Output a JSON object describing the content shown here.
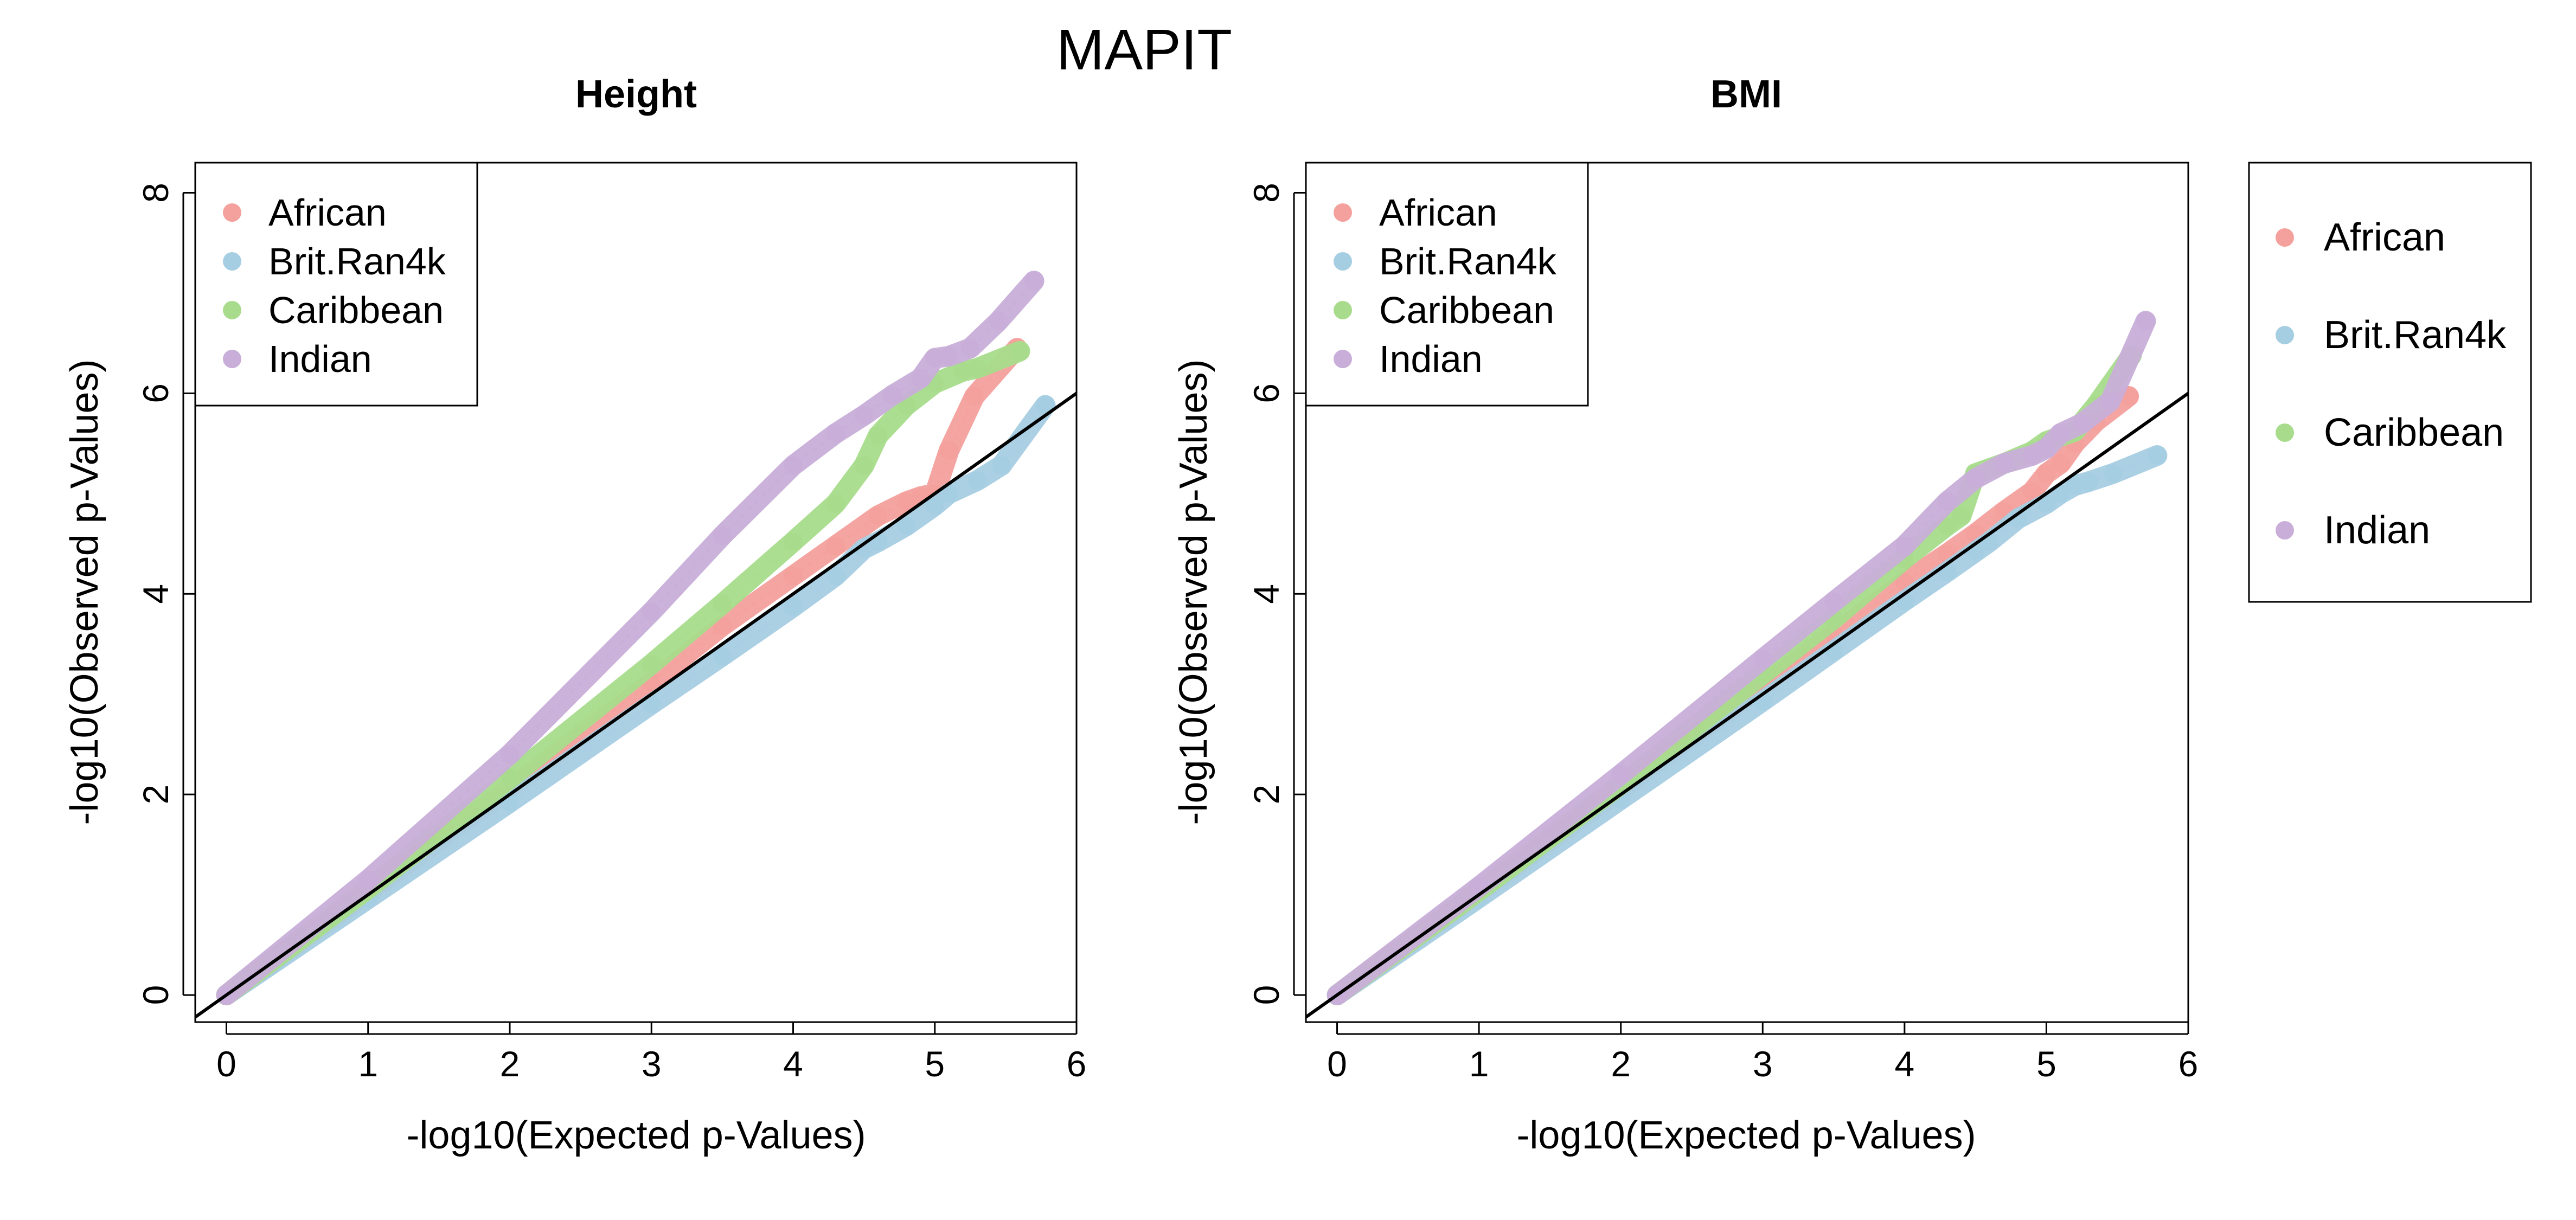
{
  "figure_title": "MAPIT",
  "colors": {
    "African": "#F4A09C",
    "Brit.Ran4k": "#A6CEE3",
    "Caribbean": "#A8DC8C",
    "Indian": "#C8AED8",
    "reference_line": "#000000"
  },
  "outer_legend": {
    "placement": "right, outside plots",
    "items": [
      "African",
      "Brit.Ran4k",
      "Caribbean",
      "Indian"
    ]
  },
  "chart_data": [
    {
      "type": "scatter",
      "title": "Height",
      "xlabel": "-log10(Expected p-Values)",
      "ylabel": "-log10(Observed p-Values)",
      "xlim": [
        -0.22,
        6.0
      ],
      "ylim": [
        -0.27,
        8.3
      ],
      "xticks": [
        "0",
        "1",
        "2",
        "3",
        "4",
        "5",
        "6"
      ],
      "yticks": [
        "0",
        "2",
        "4",
        "6",
        "8"
      ],
      "grid": false,
      "legend": "top-left",
      "reference_line": "y = x",
      "series": [
        {
          "name": "African",
          "x": [
            0,
            1,
            2,
            3,
            3.5,
            4.0,
            4.3,
            4.6,
            4.8,
            4.9,
            5.0,
            5.1,
            5.28,
            5.58
          ],
          "y": [
            0,
            1.02,
            2.06,
            3.12,
            3.68,
            4.18,
            4.48,
            4.78,
            4.92,
            4.97,
            5.0,
            5.43,
            5.97,
            6.45
          ]
        },
        {
          "name": "Brit.Ran4k",
          "x": [
            0,
            1,
            2,
            3,
            3.5,
            4.0,
            4.3,
            4.5,
            4.6,
            4.8,
            5.0,
            5.1,
            5.3,
            5.47,
            5.78
          ],
          "y": [
            0,
            0.96,
            1.92,
            2.9,
            3.38,
            3.87,
            4.18,
            4.45,
            4.52,
            4.68,
            4.88,
            5.0,
            5.13,
            5.28,
            5.88
          ]
        },
        {
          "name": "Caribbean",
          "x": [
            0,
            1,
            2,
            3,
            3.5,
            4.0,
            4.3,
            4.5,
            4.6,
            4.8,
            5.0,
            5.2,
            5.3,
            5.6
          ],
          "y": [
            0,
            1.06,
            2.16,
            3.3,
            3.9,
            4.52,
            4.9,
            5.28,
            5.58,
            5.88,
            6.1,
            6.22,
            6.25,
            6.42
          ]
        },
        {
          "name": "Indian",
          "x": [
            0,
            1,
            2,
            3,
            3.5,
            4.0,
            4.3,
            4.5,
            4.7,
            4.9,
            5.0,
            5.1,
            5.25,
            5.45,
            5.7
          ],
          "y": [
            0,
            1.15,
            2.4,
            3.82,
            4.58,
            5.28,
            5.6,
            5.78,
            5.98,
            6.15,
            6.35,
            6.37,
            6.45,
            6.72,
            7.12
          ]
        }
      ]
    },
    {
      "type": "scatter",
      "title": "BMI",
      "xlabel": "-log10(Expected p-Values)",
      "ylabel": "-log10(Observed p-Values)",
      "xlim": [
        -0.22,
        6.0
      ],
      "ylim": [
        -0.27,
        8.3
      ],
      "xticks": [
        "0",
        "1",
        "2",
        "3",
        "4",
        "5",
        "6"
      ],
      "yticks": [
        "0",
        "2",
        "4",
        "6",
        "8"
      ],
      "grid": false,
      "legend": "top-left",
      "reference_line": "y = x",
      "series": [
        {
          "name": "African",
          "x": [
            0,
            1,
            2,
            3,
            3.5,
            4.0,
            4.3,
            4.5,
            4.7,
            4.9,
            5.0,
            5.1,
            5.2,
            5.35,
            5.58
          ],
          "y": [
            0,
            1.02,
            2.05,
            3.08,
            3.6,
            4.12,
            4.4,
            4.6,
            4.82,
            5.02,
            5.2,
            5.3,
            5.5,
            5.72,
            5.97
          ]
        },
        {
          "name": "Brit.Ran4k",
          "x": [
            0,
            1,
            2,
            3,
            3.5,
            4.0,
            4.3,
            4.5,
            4.6,
            4.8,
            5.0,
            5.1,
            5.2,
            5.3,
            5.47,
            5.78
          ],
          "y": [
            0,
            0.97,
            1.95,
            2.93,
            3.43,
            3.93,
            4.22,
            4.42,
            4.52,
            4.75,
            4.9,
            5.0,
            5.08,
            5.12,
            5.2,
            5.38
          ]
        },
        {
          "name": "Caribbean",
          "x": [
            0,
            1,
            2,
            3,
            3.5,
            4.0,
            4.3,
            4.4,
            4.5,
            4.7,
            4.9,
            5.0,
            5.2,
            5.35,
            5.6
          ],
          "y": [
            0,
            1.04,
            2.1,
            3.2,
            3.75,
            4.35,
            4.68,
            4.78,
            5.2,
            5.3,
            5.42,
            5.52,
            5.62,
            5.88,
            6.38
          ]
        },
        {
          "name": "Indian",
          "x": [
            0,
            1,
            2,
            3,
            3.5,
            4.0,
            4.3,
            4.5,
            4.7,
            4.9,
            5.0,
            5.1,
            5.25,
            5.45,
            5.7
          ],
          "y": [
            0,
            1.08,
            2.2,
            3.35,
            3.92,
            4.48,
            4.92,
            5.15,
            5.3,
            5.38,
            5.45,
            5.6,
            5.7,
            5.92,
            6.72
          ]
        }
      ]
    }
  ]
}
